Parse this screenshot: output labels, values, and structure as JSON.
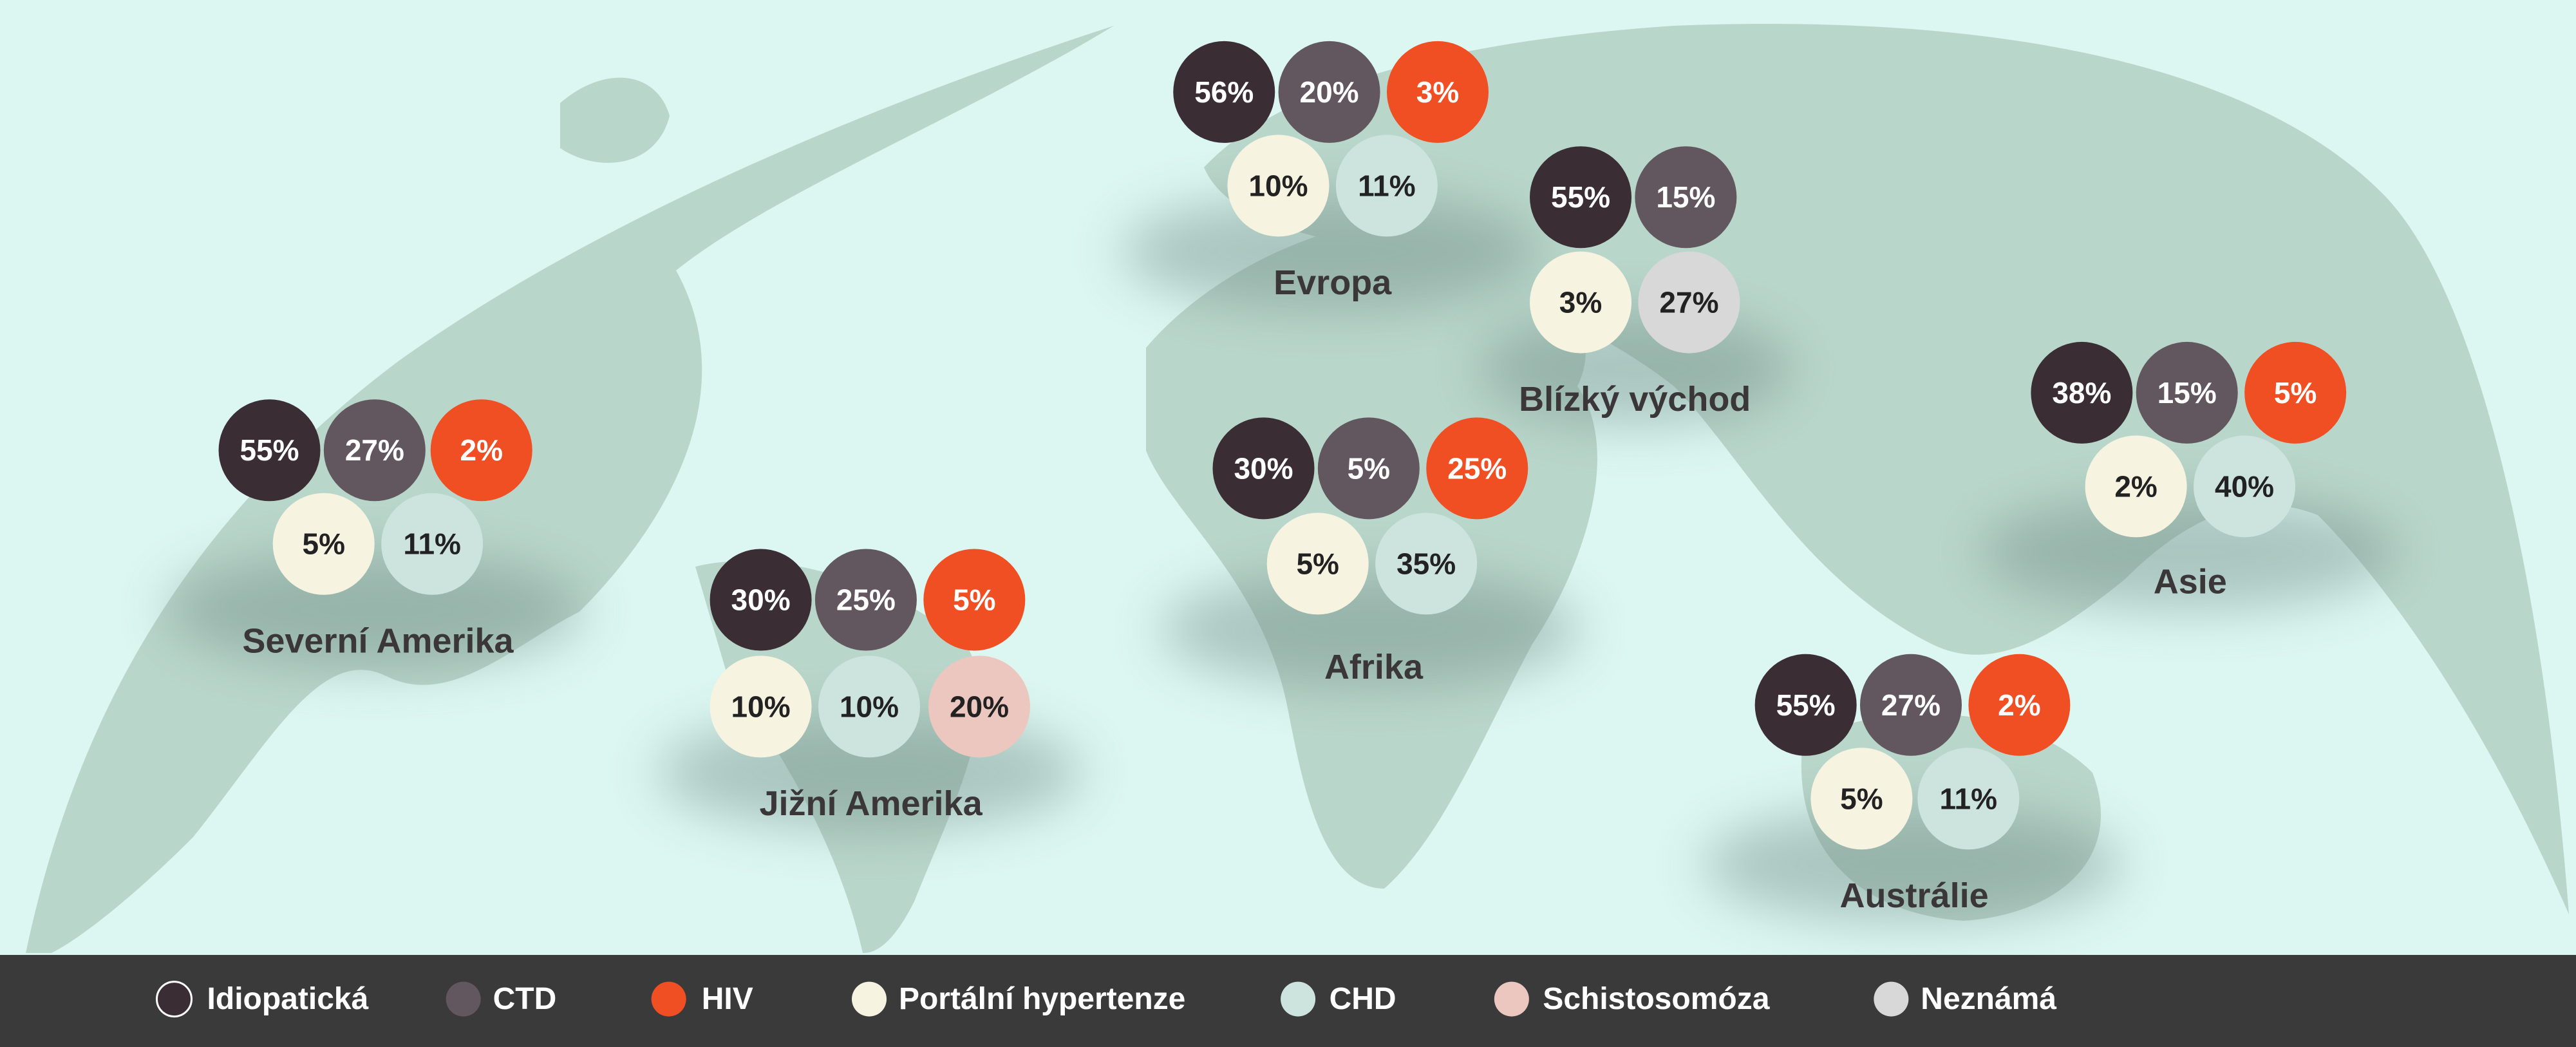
{
  "regions": [
    {
      "name": "Evropa",
      "items": [
        {
          "value": "56%",
          "color": "#3a2d33"
        },
        {
          "value": "20%",
          "color": "#62575e"
        },
        {
          "value": "3%",
          "color": "#f04e23"
        },
        {
          "value": "10%",
          "color": "#f7f3e1"
        },
        {
          "value": "11%",
          "color": "#cde3de"
        }
      ]
    },
    {
      "name": "Blízký východ",
      "items": [
        {
          "value": "55%",
          "color": "#3a2d33"
        },
        {
          "value": "15%",
          "color": "#62575e"
        },
        {
          "value": "3%",
          "color": "#f7f3e1"
        },
        {
          "value": "27%",
          "color": "#d8d8d8"
        }
      ]
    },
    {
      "name": "Severní Amerika",
      "items": [
        {
          "value": "55%",
          "color": "#3a2d33"
        },
        {
          "value": "27%",
          "color": "#62575e"
        },
        {
          "value": "2%",
          "color": "#f04e23"
        },
        {
          "value": "5%",
          "color": "#f7f3e1"
        },
        {
          "value": "11%",
          "color": "#cde3de"
        }
      ]
    },
    {
      "name": "Jižní Amerika",
      "items": [
        {
          "value": "30%",
          "color": "#3a2d33"
        },
        {
          "value": "25%",
          "color": "#62575e"
        },
        {
          "value": "5%",
          "color": "#f04e23"
        },
        {
          "value": "10%",
          "color": "#f7f3e1"
        },
        {
          "value": "10%",
          "color": "#cde3de"
        },
        {
          "value": "20%",
          "color": "#ecc7c0"
        }
      ]
    },
    {
      "name": "Afrika",
      "items": [
        {
          "value": "30%",
          "color": "#3a2d33"
        },
        {
          "value": "5%",
          "color": "#62575e"
        },
        {
          "value": "25%",
          "color": "#f04e23"
        },
        {
          "value": "5%",
          "color": "#f7f3e1"
        },
        {
          "value": "35%",
          "color": "#cde3de"
        }
      ]
    },
    {
      "name": "Asie",
      "items": [
        {
          "value": "38%",
          "color": "#3a2d33"
        },
        {
          "value": "15%",
          "color": "#62575e"
        },
        {
          "value": "5%",
          "color": "#f04e23"
        },
        {
          "value": "2%",
          "color": "#f7f3e1"
        },
        {
          "value": "40%",
          "color": "#cde3de"
        }
      ]
    },
    {
      "name": "Austrálie",
      "items": [
        {
          "value": "55%",
          "color": "#3a2d33"
        },
        {
          "value": "27%",
          "color": "#62575e"
        },
        {
          "value": "2%",
          "color": "#f04e23"
        },
        {
          "value": "5%",
          "color": "#f7f3e1"
        },
        {
          "value": "11%",
          "color": "#cde3de"
        }
      ]
    }
  ],
  "legend": [
    {
      "name": "Idiopatická",
      "color": "#3a2d33"
    },
    {
      "name": "CTD",
      "color": "#62575e"
    },
    {
      "name": "HIV",
      "color": "#f04e23"
    },
    {
      "name": "Portální hypertenze",
      "color": "#f7f3e1"
    },
    {
      "name": "CHD",
      "color": "#cde3de"
    },
    {
      "name": "Schistosomóza",
      "color": "#ecc7c0"
    },
    {
      "name": "Neznámá",
      "color": "#d8d8d8"
    }
  ]
}
